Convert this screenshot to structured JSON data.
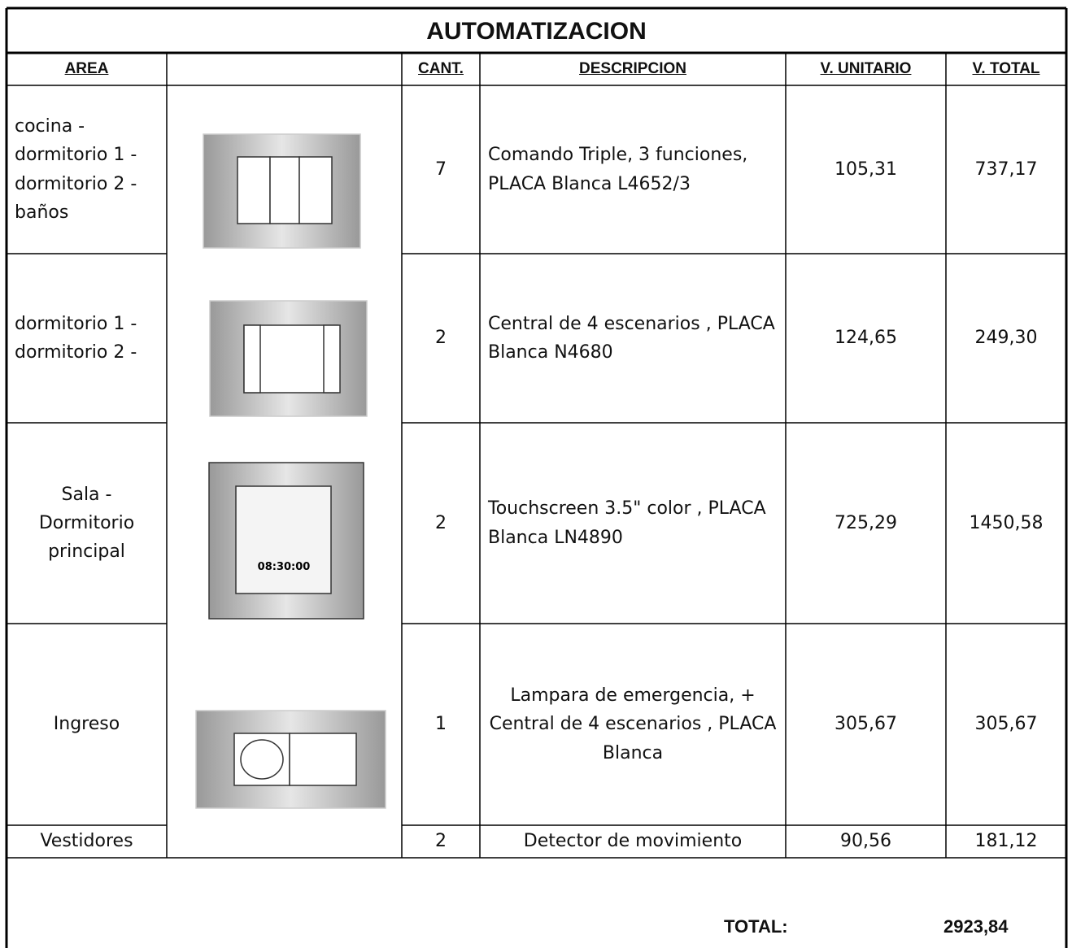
{
  "title": "AUTOMATIZACION",
  "headers": {
    "area": "AREA",
    "cant": "CANT.",
    "descripcion": "DESCRIPCION",
    "v_unitario": "V. UNITARIO",
    "v_total": "V. TOTAL"
  },
  "rows": [
    {
      "area": "cocina - dormitorio 1 - dormitorio 2 - baños",
      "cant": "7",
      "descripcion": "Comando Triple, 3 funciones, PLACA Blanca L4652/3",
      "v_unitario": "105,31",
      "v_total": "737,17"
    },
    {
      "area": "dormitorio 1 - dormitorio 2 -",
      "cant": "2",
      "descripcion": "Central de 4 escenarios , PLACA Blanca  N4680",
      "v_unitario": "124,65",
      "v_total": "249,30"
    },
    {
      "area": "Sala - Dormitorio principal",
      "cant": "2",
      "descripcion": "Touchscreen 3.5\" color , PLACA Blanca   LN4890",
      "v_unitario": "725,29",
      "v_total": "1450,58"
    },
    {
      "area": "Ingreso",
      "cant": "1",
      "descripcion": "Lampara de emergencia, + Central de 4 escenarios , PLACA Blanca",
      "v_unitario": "305,67",
      "v_total": "305,67"
    },
    {
      "area": "Vestidores",
      "cant": "2",
      "descripcion": "Detector de movimiento",
      "v_unitario": "90,56",
      "v_total": "181,12"
    }
  ],
  "total": {
    "label": "TOTAL:",
    "value": "2923,84"
  }
}
